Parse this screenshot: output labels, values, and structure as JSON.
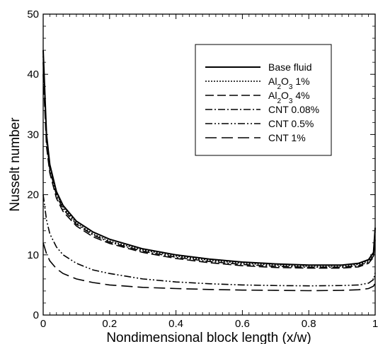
{
  "chart_data": {
    "type": "line",
    "title": "",
    "xlabel": "Nondimensional block length (x/w)",
    "ylabel": "Nusselt number",
    "xlim": [
      0,
      1
    ],
    "ylim": [
      0,
      50
    ],
    "xticks": [
      0,
      0.2,
      0.4,
      0.6,
      0.8,
      1
    ],
    "xtick_labels": [
      "0",
      "0.2",
      "0.4",
      "0.6",
      "0.8",
      "1"
    ],
    "yticks": [
      0,
      10,
      20,
      30,
      40,
      50
    ],
    "ytick_labels": [
      "0",
      "10",
      "20",
      "30",
      "40",
      "50"
    ],
    "grid": false,
    "legend_position": "top-right",
    "x": [
      0,
      0.01,
      0.02,
      0.04,
      0.06,
      0.1,
      0.15,
      0.2,
      0.3,
      0.4,
      0.5,
      0.6,
      0.7,
      0.8,
      0.9,
      0.95,
      0.98,
      0.995,
      1.0
    ],
    "series": [
      {
        "name": "Base fluid",
        "legend_parts": [
          {
            "t": "Base fluid",
            "s": "n"
          }
        ],
        "dash": "",
        "values": [
          44,
          30,
          25,
          20.5,
          18.2,
          15.6,
          13.8,
          12.6,
          11.0,
          10.0,
          9.3,
          8.8,
          8.5,
          8.3,
          8.3,
          8.6,
          9.2,
          10.4,
          14.5
        ]
      },
      {
        "name": "Al2O3 1%",
        "legend_parts": [
          {
            "t": "Al",
            "s": "n"
          },
          {
            "t": "2",
            "s": "sub"
          },
          {
            "t": "O",
            "s": "n"
          },
          {
            "t": "3",
            "s": "sub"
          },
          {
            "t": " 1%",
            "s": "n"
          }
        ],
        "dash": "2,2",
        "values": [
          43,
          29.5,
          24.6,
          20.2,
          17.9,
          15.3,
          13.5,
          12.3,
          10.8,
          9.8,
          9.1,
          8.6,
          8.3,
          8.1,
          8.1,
          8.4,
          9.0,
          10.1,
          14.0
        ]
      },
      {
        "name": "Al2O3 4%",
        "legend_parts": [
          {
            "t": "Al",
            "s": "n"
          },
          {
            "t": "2",
            "s": "sub"
          },
          {
            "t": "O",
            "s": "n"
          },
          {
            "t": "3",
            "s": "sub"
          },
          {
            "t": " 4%",
            "s": "n"
          }
        ],
        "dash": "12,5",
        "values": [
          40,
          28,
          23.6,
          19.4,
          17.2,
          14.8,
          13.0,
          11.9,
          10.4,
          9.4,
          8.7,
          8.2,
          7.9,
          7.8,
          7.8,
          8.0,
          8.6,
          9.6,
          12.5
        ]
      },
      {
        "name": "CNT 0.08%",
        "legend_parts": [
          {
            "t": "CNT 0.08%",
            "s": "n"
          }
        ],
        "dash": "10,3,2,3",
        "values": [
          42,
          29,
          24.2,
          19.9,
          17.6,
          15.1,
          13.3,
          12.1,
          10.6,
          9.6,
          8.9,
          8.4,
          8.1,
          7.95,
          7.95,
          8.2,
          8.8,
          9.8,
          13.0
        ]
      },
      {
        "name": "CNT 0.5%",
        "legend_parts": [
          {
            "t": "CNT 0.5%",
            "s": "n"
          }
        ],
        "dash": "10,3,2,3,2,3",
        "values": [
          20,
          15.8,
          13.5,
          11.3,
          10.0,
          8.6,
          7.5,
          6.9,
          6.0,
          5.5,
          5.2,
          5.0,
          4.9,
          4.85,
          4.9,
          5.0,
          5.3,
          5.9,
          7.0
        ]
      },
      {
        "name": "CNT 1%",
        "legend_parts": [
          {
            "t": "CNT 1%",
            "s": "n"
          }
        ],
        "dash": "16,7",
        "values": [
          12,
          10.2,
          9.0,
          7.7,
          6.9,
          6.0,
          5.4,
          5.0,
          4.6,
          4.4,
          4.25,
          4.15,
          4.1,
          4.05,
          4.1,
          4.2,
          4.4,
          4.8,
          5.3
        ]
      }
    ]
  }
}
